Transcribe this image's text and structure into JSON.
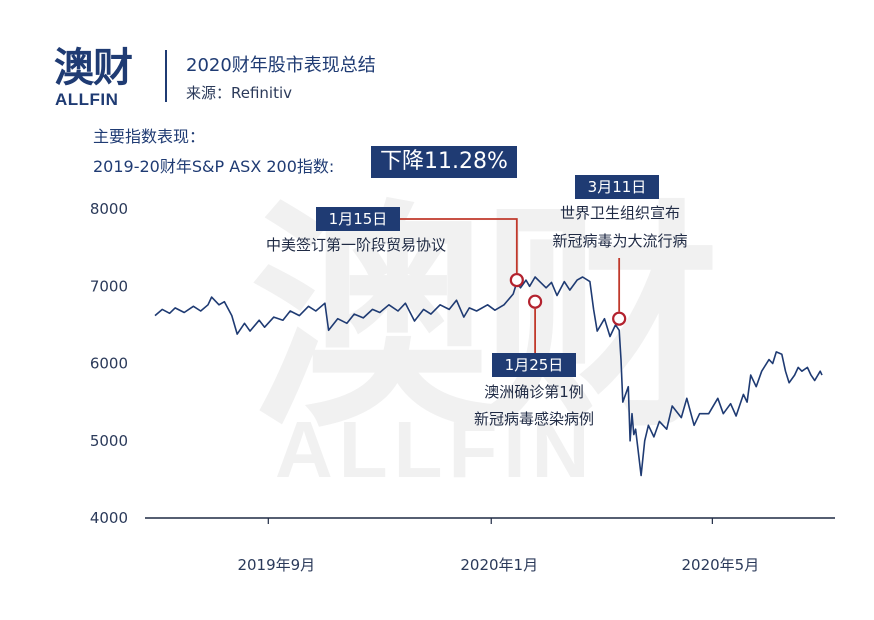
{
  "brand": {
    "logo_cn": "澳财",
    "logo_en": "ALLFIN"
  },
  "header": {
    "title": "2020财年股市表现总结",
    "source": "来源：Refinitiv"
  },
  "summary": {
    "label": "主要指数表现：",
    "index_label": "2019-20财年S&P ASX 200指数:",
    "change": "下降11.28%"
  },
  "watermark": {
    "cn": "澳财",
    "en": "ALLFIN"
  },
  "colors": {
    "brand_navy": "#1f3b73",
    "line": "#1f3b73",
    "marker": "#b3222e",
    "annotation_line": "#c0392b"
  },
  "chart_data": {
    "type": "line",
    "title": "",
    "xlabel": "",
    "ylabel": "",
    "ylim": [
      4000,
      8000
    ],
    "yticks": [
      "4000",
      "5000",
      "6000",
      "7000",
      "8000"
    ],
    "xticks": [
      {
        "label": "2019年9月",
        "x": "2019-09-01"
      },
      {
        "label": "2020年1月",
        "x": "2020-01-01"
      },
      {
        "label": "2020年5月",
        "x": "2020-05-01"
      }
    ],
    "xlim": [
      "2019-07-01",
      "2020-06-30"
    ],
    "grid": false,
    "series": [
      {
        "values": [
          [
            "2019-07-01",
            6620
          ],
          [
            "2019-07-05",
            6700
          ],
          [
            "2019-07-09",
            6650
          ],
          [
            "2019-07-12",
            6720
          ],
          [
            "2019-07-17",
            6660
          ],
          [
            "2019-07-22",
            6740
          ],
          [
            "2019-07-26",
            6680
          ],
          [
            "2019-07-30",
            6760
          ],
          [
            "2019-08-01",
            6860
          ],
          [
            "2019-08-05",
            6760
          ],
          [
            "2019-08-08",
            6800
          ],
          [
            "2019-08-12",
            6620
          ],
          [
            "2019-08-15",
            6380
          ],
          [
            "2019-08-19",
            6520
          ],
          [
            "2019-08-22",
            6420
          ],
          [
            "2019-08-27",
            6560
          ],
          [
            "2019-08-30",
            6470
          ],
          [
            "2019-09-04",
            6600
          ],
          [
            "2019-09-09",
            6560
          ],
          [
            "2019-09-13",
            6680
          ],
          [
            "2019-09-18",
            6620
          ],
          [
            "2019-09-23",
            6740
          ],
          [
            "2019-09-27",
            6680
          ],
          [
            "2019-10-02",
            6780
          ],
          [
            "2019-10-04",
            6430
          ],
          [
            "2019-10-09",
            6580
          ],
          [
            "2019-10-14",
            6520
          ],
          [
            "2019-10-18",
            6640
          ],
          [
            "2019-10-23",
            6590
          ],
          [
            "2019-10-28",
            6700
          ],
          [
            "2019-11-01",
            6660
          ],
          [
            "2019-11-06",
            6760
          ],
          [
            "2019-11-11",
            6680
          ],
          [
            "2019-11-15",
            6780
          ],
          [
            "2019-11-20",
            6550
          ],
          [
            "2019-11-25",
            6700
          ],
          [
            "2019-11-29",
            6640
          ],
          [
            "2019-12-04",
            6760
          ],
          [
            "2019-12-09",
            6700
          ],
          [
            "2019-12-13",
            6820
          ],
          [
            "2019-12-17",
            6600
          ],
          [
            "2019-12-20",
            6720
          ],
          [
            "2019-12-24",
            6680
          ],
          [
            "2019-12-30",
            6760
          ],
          [
            "2020-01-03",
            6690
          ],
          [
            "2020-01-08",
            6760
          ],
          [
            "2020-01-13",
            6900
          ],
          [
            "2020-01-15",
            7050
          ],
          [
            "2020-01-17",
            6980
          ],
          [
            "2020-01-20",
            7080
          ],
          [
            "2020-01-22",
            7000
          ],
          [
            "2020-01-25",
            7120
          ],
          [
            "2020-01-28",
            7050
          ],
          [
            "2020-01-31",
            6980
          ],
          [
            "2020-02-03",
            7050
          ],
          [
            "2020-02-06",
            6880
          ],
          [
            "2020-02-10",
            7060
          ],
          [
            "2020-02-13",
            6950
          ],
          [
            "2020-02-17",
            7080
          ],
          [
            "2020-02-20",
            7120
          ],
          [
            "2020-02-24",
            7060
          ],
          [
            "2020-02-26",
            6700
          ],
          [
            "2020-02-28",
            6420
          ],
          [
            "2020-03-03",
            6580
          ],
          [
            "2020-03-06",
            6350
          ],
          [
            "2020-03-09",
            6500
          ],
          [
            "2020-03-11",
            6430
          ],
          [
            "2020-03-12",
            6050
          ],
          [
            "2020-03-13",
            5500
          ],
          [
            "2020-03-16",
            5700
          ],
          [
            "2020-03-17",
            5000
          ],
          [
            "2020-03-18",
            5350
          ],
          [
            "2020-03-19",
            5080
          ],
          [
            "2020-03-20",
            5150
          ],
          [
            "2020-03-23",
            4550
          ],
          [
            "2020-03-25",
            5000
          ],
          [
            "2020-03-27",
            5200
          ],
          [
            "2020-03-30",
            5050
          ],
          [
            "2020-04-02",
            5250
          ],
          [
            "2020-04-06",
            5150
          ],
          [
            "2020-04-09",
            5450
          ],
          [
            "2020-04-14",
            5300
          ],
          [
            "2020-04-17",
            5550
          ],
          [
            "2020-04-21",
            5200
          ],
          [
            "2020-04-24",
            5350
          ],
          [
            "2020-04-29",
            5350
          ],
          [
            "2020-05-04",
            5550
          ],
          [
            "2020-05-07",
            5350
          ],
          [
            "2020-05-11",
            5480
          ],
          [
            "2020-05-14",
            5320
          ],
          [
            "2020-05-18",
            5600
          ],
          [
            "2020-05-20",
            5500
          ],
          [
            "2020-05-22",
            5850
          ],
          [
            "2020-05-25",
            5700
          ],
          [
            "2020-05-28",
            5900
          ],
          [
            "2020-06-01",
            6050
          ],
          [
            "2020-06-03",
            6000
          ],
          [
            "2020-06-05",
            6150
          ],
          [
            "2020-06-08",
            6120
          ],
          [
            "2020-06-10",
            5900
          ],
          [
            "2020-06-12",
            5750
          ],
          [
            "2020-06-15",
            5850
          ],
          [
            "2020-06-17",
            5950
          ],
          [
            "2020-06-19",
            5900
          ],
          [
            "2020-06-22",
            5950
          ],
          [
            "2020-06-24",
            5850
          ],
          [
            "2020-06-26",
            5780
          ],
          [
            "2020-06-29",
            5900
          ],
          [
            "2020-06-30",
            5850
          ]
        ]
      }
    ],
    "annotations": [
      {
        "date_label": "1月15日",
        "text": [
          "中美签订第一阶段贸易协议"
        ],
        "x": "2020-01-15",
        "y": 7080
      },
      {
        "date_label": "1月25日",
        "text": [
          "澳洲确诊第1例",
          "新冠病毒感染病例"
        ],
        "x": "2020-01-25",
        "y": 6800
      },
      {
        "date_label": "3月11日",
        "text": [
          "世界卫生组织宣布",
          "新冠病毒为大流行病"
        ],
        "x": "2020-03-11",
        "y": 6580
      }
    ]
  }
}
